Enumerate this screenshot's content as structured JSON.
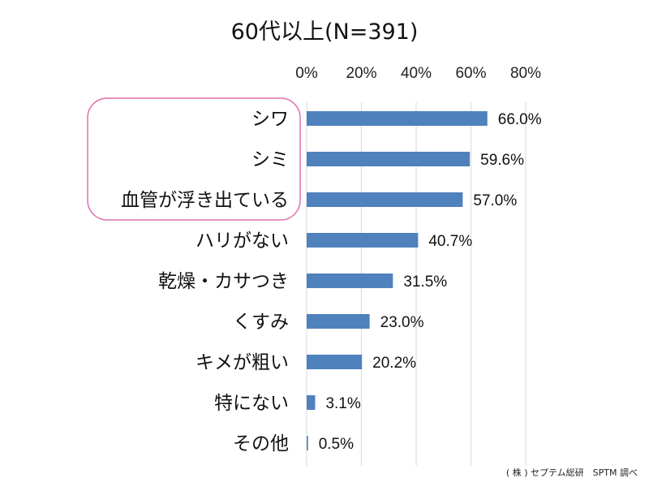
{
  "chart_data": {
    "type": "bar",
    "orientation": "horizontal",
    "title": "60代以上(N=391)",
    "categories": [
      "シワ",
      "シミ",
      "血管が浮き出ている",
      "ハリがない",
      "乾燥・カサつき",
      "くすみ",
      "キメが粗い",
      "特にない",
      "その他"
    ],
    "values": [
      66.0,
      59.6,
      57.0,
      40.7,
      31.5,
      23.0,
      20.2,
      3.1,
      0.5
    ],
    "value_labels": [
      "66.0%",
      "59.6%",
      "57.0%",
      "40.7%",
      "31.5%",
      "23.0%",
      "20.2%",
      "3.1%",
      "0.5%"
    ],
    "xticks": [
      0,
      20,
      40,
      60,
      80
    ],
    "xtick_labels": [
      "0%",
      "20%",
      "40%",
      "60%",
      "80%"
    ],
    "xlim": [
      0,
      80
    ],
    "xaxis_position": "top",
    "grid": true,
    "bar_color": "#4f81bd",
    "highlight_color": "#e070b0",
    "highlighted_categories": [
      "シワ",
      "シミ",
      "血管が浮き出ている"
    ],
    "source_note": "( 株 ) セプテム総研　SPTM 調べ"
  }
}
